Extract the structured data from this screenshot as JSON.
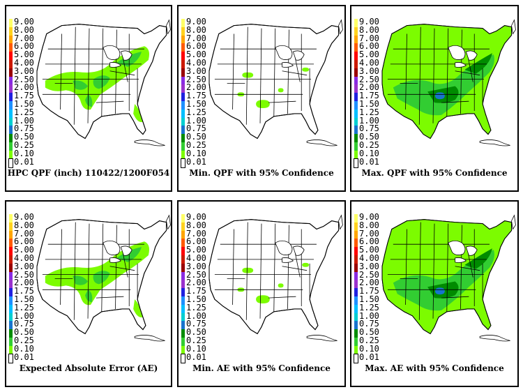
{
  "legend": [
    "9.00",
    "8.00",
    "7.00",
    "6.00",
    "5.00",
    "4.00",
    "3.00",
    "2.50",
    "2.00",
    "1.75",
    "1.50",
    "1.25",
    "1.00",
    "0.75",
    "0.50",
    "0.25",
    "0.10",
    "0.01"
  ],
  "legend_colors": [
    "#ffff66",
    "#ffd21e",
    "#ffa500",
    "#ff5a00",
    "#ff0000",
    "#cc1a00",
    "#990000",
    "#8a2be2",
    "#9a32cd",
    "#2020e0",
    "#1e90ff",
    "#00bfff",
    "#00ced1",
    "#1874cd",
    "#008b00",
    "#32cd32",
    "#7cfc00",
    "#ffffff"
  ],
  "panels": [
    {
      "caption": "HPC QPF (inch) 110422/1200F054",
      "level": "base"
    },
    {
      "caption": "Min. QPF with 95% Confidence",
      "level": "min"
    },
    {
      "caption": "Max. QPF with 95% Confidence",
      "level": "max"
    },
    {
      "caption": "Expected Absolute Error (AE)",
      "level": "base"
    },
    {
      "caption": "Min. AE with 95% Confidence",
      "level": "min"
    },
    {
      "caption": "Max. AE with 95% Confidence",
      "level": "max"
    }
  ],
  "precip_colors": {
    "light": "#7cfc00",
    "medium": "#32cd32",
    "dark": "#008b00",
    "blue": "#1874cd"
  }
}
